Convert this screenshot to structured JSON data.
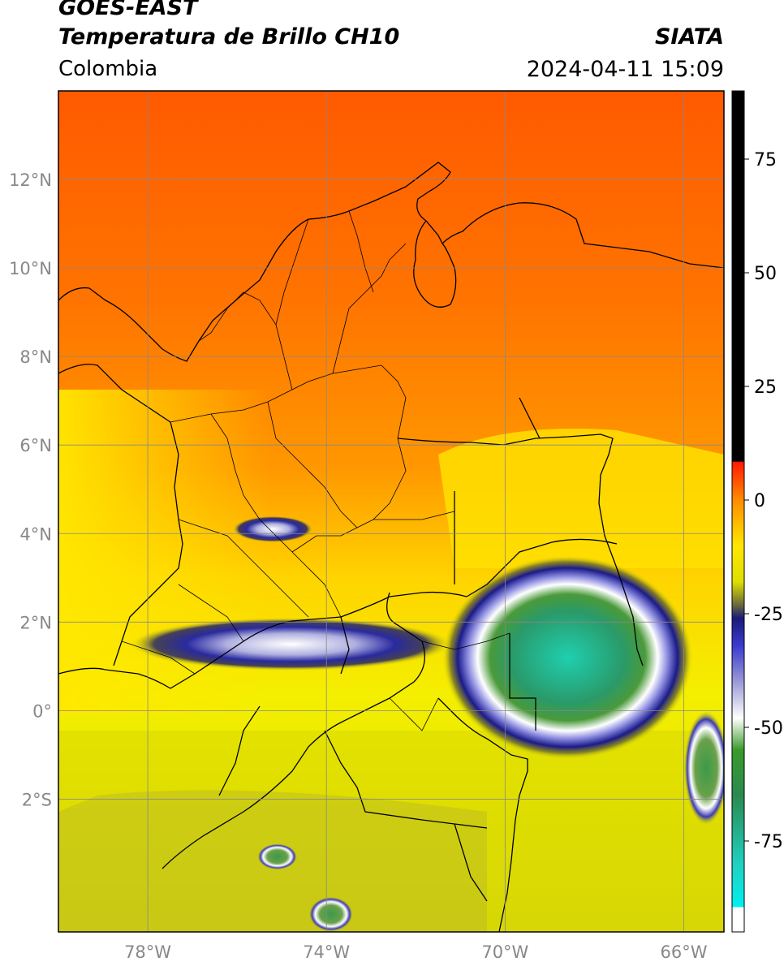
{
  "header": {
    "satellite": "GOES-EAST",
    "product": "Temperatura de Brillo CH10",
    "region": "Colombia",
    "agency": "SIATA",
    "datetime": "2024-04-11 15:09"
  },
  "map": {
    "lon_range": [
      -80.0,
      -65.1
    ],
    "lat_range": [
      -5.0,
      14.0
    ],
    "lon_ticks": [
      {
        "value": -78,
        "label": "78°W"
      },
      {
        "value": -74,
        "label": "74°W"
      },
      {
        "value": -70,
        "label": "70°W"
      },
      {
        "value": -66,
        "label": "66°W"
      }
    ],
    "lat_ticks": [
      {
        "value": 12,
        "label": "12°N"
      },
      {
        "value": 10,
        "label": "10°N"
      },
      {
        "value": 8,
        "label": "8°N"
      },
      {
        "value": 6,
        "label": "6°N"
      },
      {
        "value": 4,
        "label": "4°N"
      },
      {
        "value": 2,
        "label": "2°N"
      },
      {
        "value": 0,
        "label": "0°"
      },
      {
        "value": -2,
        "label": "2°S"
      }
    ],
    "cloud_clusters": [
      {
        "name": "amazon-mcs",
        "lon": -68.6,
        "lat": 1.2,
        "rx_deg": 2.8,
        "ry_deg": 2.3,
        "peak_c": -72
      },
      {
        "name": "andes-front",
        "lon": -74.8,
        "lat": 1.5,
        "rx_deg": 3.6,
        "ry_deg": 0.6,
        "peak_c": -35
      },
      {
        "name": "central-cordillera",
        "lon": -75.2,
        "lat": 4.1,
        "rx_deg": 0.9,
        "ry_deg": 0.3,
        "peak_c": -32
      },
      {
        "name": "east-edge",
        "lon": -65.5,
        "lat": -1.3,
        "rx_deg": 0.5,
        "ry_deg": 1.3,
        "peak_c": -65
      },
      {
        "name": "south-cell-1",
        "lon": -75.1,
        "lat": -3.3,
        "rx_deg": 0.45,
        "ry_deg": 0.3,
        "peak_c": -65
      },
      {
        "name": "south-cell-2",
        "lon": -73.9,
        "lat": -4.6,
        "rx_deg": 0.5,
        "ry_deg": 0.4,
        "peak_c": -65
      }
    ]
  },
  "colorbar": {
    "units": "°C",
    "range": [
      -95,
      90
    ],
    "ticks": [
      {
        "value": 75,
        "label": "75"
      },
      {
        "value": 50,
        "label": "50"
      },
      {
        "value": 25,
        "label": "25"
      },
      {
        "value": 0,
        "label": "0"
      },
      {
        "value": -25,
        "label": "-25"
      },
      {
        "value": -50,
        "label": "-50"
      },
      {
        "value": -75,
        "label": "-75"
      }
    ],
    "stops": [
      {
        "value": 90,
        "color": "#000000"
      },
      {
        "value": 8.5,
        "color": "#000000"
      },
      {
        "value": 8.4,
        "color": "#ff1a00"
      },
      {
        "value": 0,
        "color": "#ff8c00"
      },
      {
        "value": -10,
        "color": "#ffe600"
      },
      {
        "value": -18,
        "color": "#dede00"
      },
      {
        "value": -23,
        "color": "#6b6b3a"
      },
      {
        "value": -26,
        "color": "#1a1a7a"
      },
      {
        "value": -32,
        "color": "#3a3ad0"
      },
      {
        "value": -40,
        "color": "#9a9ad8"
      },
      {
        "value": -48,
        "color": "#ffffff"
      },
      {
        "value": -55,
        "color": "#3a9a2a"
      },
      {
        "value": -65,
        "color": "#2a8a50"
      },
      {
        "value": -80,
        "color": "#20d0c0"
      },
      {
        "value": -89.5,
        "color": "#00f0f0"
      },
      {
        "value": -89.6,
        "color": "#ffffff"
      },
      {
        "value": -95,
        "color": "#ffffff"
      }
    ]
  }
}
